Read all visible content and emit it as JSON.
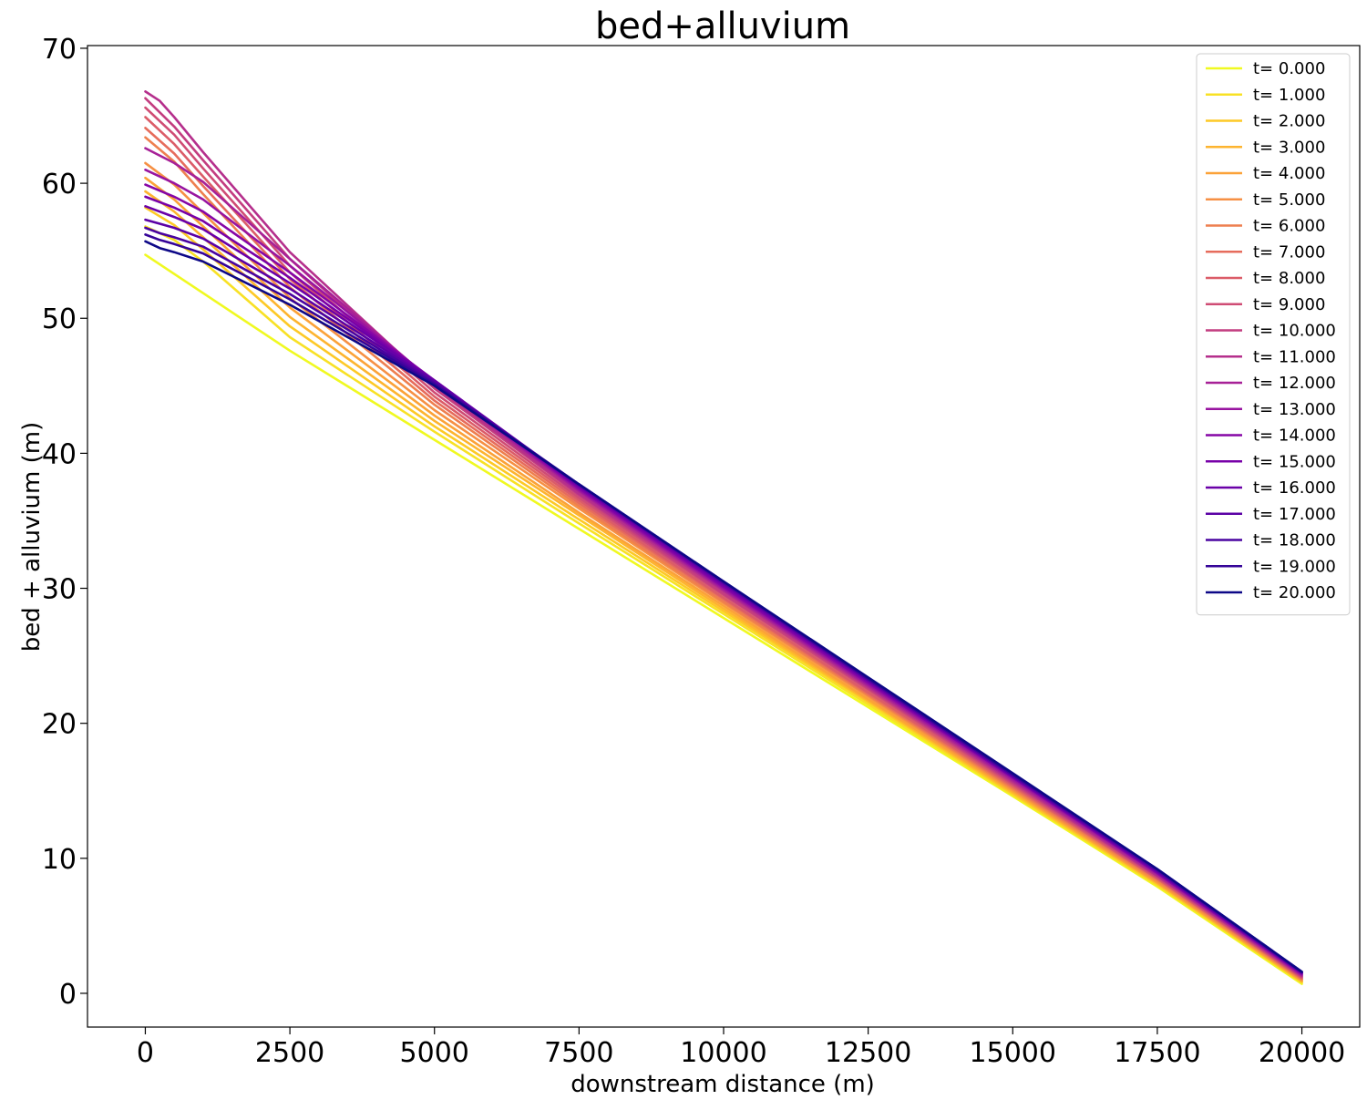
{
  "chart_data": {
    "type": "line",
    "title": "bed+alluvium",
    "xlabel": "downstream distance (m)",
    "ylabel": "bed + alluvium (m)",
    "xlim": [
      -1000,
      21000
    ],
    "ylim": [
      -2.5,
      70.2
    ],
    "xticks": [
      0,
      2500,
      5000,
      7500,
      10000,
      12500,
      15000,
      17500,
      20000
    ],
    "yticks": [
      0,
      10,
      20,
      30,
      40,
      50,
      60,
      70
    ],
    "legend_position": "top-right",
    "grid": false,
    "series": [
      {
        "name": "t= 0.000",
        "color": "#f0f921",
        "points": [
          [
            0,
            54.7
          ],
          [
            2500,
            47.6
          ],
          [
            5000,
            41.0
          ],
          [
            7500,
            34.4
          ],
          [
            10000,
            27.8
          ],
          [
            12500,
            21.2
          ],
          [
            15000,
            14.6
          ],
          [
            17500,
            7.9
          ],
          [
            20000,
            0.7
          ]
        ]
      },
      {
        "name": "t= 1.000",
        "color": "#f8e125",
        "points": [
          [
            0,
            56.8
          ],
          [
            500,
            55.8
          ],
          [
            1000,
            54.2
          ],
          [
            2500,
            48.6
          ],
          [
            5000,
            41.6
          ],
          [
            7500,
            34.8
          ],
          [
            10000,
            28.1
          ],
          [
            12500,
            21.4
          ],
          [
            15000,
            14.7
          ],
          [
            17500,
            8.0
          ],
          [
            20000,
            0.8
          ]
        ]
      },
      {
        "name": "t= 2.000",
        "color": "#fdc926",
        "points": [
          [
            0,
            58.2
          ],
          [
            500,
            56.9
          ],
          [
            1000,
            55.1
          ],
          [
            2500,
            49.4
          ],
          [
            5000,
            42.0
          ],
          [
            7500,
            35.1
          ],
          [
            10000,
            28.3
          ],
          [
            12500,
            21.6
          ],
          [
            15000,
            14.8
          ],
          [
            17500,
            8.1
          ],
          [
            20000,
            0.85
          ]
        ]
      },
      {
        "name": "t= 3.000",
        "color": "#fdb42f",
        "points": [
          [
            0,
            59.4
          ],
          [
            500,
            57.9
          ],
          [
            1000,
            56.0
          ],
          [
            2500,
            50.1
          ],
          [
            5000,
            42.4
          ],
          [
            7500,
            35.4
          ],
          [
            10000,
            28.5
          ],
          [
            12500,
            21.7
          ],
          [
            15000,
            14.9
          ],
          [
            17500,
            8.2
          ],
          [
            20000,
            0.9
          ]
        ]
      },
      {
        "name": "t= 4.000",
        "color": "#fba238",
        "points": [
          [
            0,
            60.4
          ],
          [
            500,
            58.8
          ],
          [
            1000,
            56.8
          ],
          [
            2500,
            50.8
          ],
          [
            5000,
            42.8
          ],
          [
            7500,
            35.6
          ],
          [
            10000,
            28.7
          ],
          [
            12500,
            21.8
          ],
          [
            15000,
            15.0
          ],
          [
            17500,
            8.2
          ],
          [
            20000,
            0.95
          ]
        ]
      },
      {
        "name": "t= 5.000",
        "color": "#f69044",
        "points": [
          [
            0,
            61.5
          ],
          [
            500,
            59.9
          ],
          [
            1000,
            57.8
          ],
          [
            2500,
            51.5
          ],
          [
            5000,
            43.2
          ],
          [
            7500,
            35.9
          ],
          [
            10000,
            28.9
          ],
          [
            12500,
            22.0
          ],
          [
            15000,
            15.1
          ],
          [
            17500,
            8.3
          ],
          [
            20000,
            1.0
          ]
        ]
      },
      {
        "name": "t= 6.000",
        "color": "#ee7f4f",
        "points": [
          [
            0,
            63.4
          ],
          [
            500,
            61.6
          ],
          [
            1000,
            59.2
          ],
          [
            2500,
            52.3
          ],
          [
            5000,
            43.6
          ],
          [
            7500,
            36.1
          ],
          [
            10000,
            29.0
          ],
          [
            12500,
            22.1
          ],
          [
            15000,
            15.2
          ],
          [
            17500,
            8.4
          ],
          [
            20000,
            1.05
          ]
        ]
      },
      {
        "name": "t= 7.000",
        "color": "#e66c5c",
        "points": [
          [
            0,
            64.1
          ],
          [
            500,
            62.2
          ],
          [
            1000,
            59.8
          ],
          [
            2500,
            52.9
          ],
          [
            5000,
            43.9
          ],
          [
            7500,
            36.3
          ],
          [
            10000,
            29.2
          ],
          [
            12500,
            22.2
          ],
          [
            15000,
            15.3
          ],
          [
            17500,
            8.5
          ],
          [
            20000,
            1.1
          ]
        ]
      },
      {
        "name": "t= 8.000",
        "color": "#db5c68",
        "points": [
          [
            0,
            64.9
          ],
          [
            500,
            62.9
          ],
          [
            1000,
            60.5
          ],
          [
            2500,
            53.4
          ],
          [
            5000,
            44.2
          ],
          [
            7500,
            36.5
          ],
          [
            10000,
            29.3
          ],
          [
            12500,
            22.3
          ],
          [
            15000,
            15.4
          ],
          [
            17500,
            8.5
          ],
          [
            20000,
            1.15
          ]
        ]
      },
      {
        "name": "t= 9.000",
        "color": "#cf4c74",
        "points": [
          [
            0,
            65.6
          ],
          [
            500,
            63.6
          ],
          [
            1000,
            61.1
          ],
          [
            2500,
            53.9
          ],
          [
            5000,
            44.5
          ],
          [
            7500,
            36.7
          ],
          [
            10000,
            29.5
          ],
          [
            12500,
            22.5
          ],
          [
            15000,
            15.5
          ],
          [
            17500,
            8.6
          ],
          [
            20000,
            1.2
          ]
        ]
      },
      {
        "name": "t= 10.000",
        "color": "#c33d80",
        "points": [
          [
            0,
            66.3
          ],
          [
            500,
            64.2
          ],
          [
            1000,
            61.7
          ],
          [
            2500,
            54.4
          ],
          [
            5000,
            44.8
          ],
          [
            7500,
            36.9
          ],
          [
            10000,
            29.6
          ],
          [
            12500,
            22.6
          ],
          [
            15000,
            15.6
          ],
          [
            17500,
            8.7
          ],
          [
            20000,
            1.25
          ]
        ]
      },
      {
        "name": "t= 11.000",
        "color": "#b52f8c",
        "points": [
          [
            0,
            66.8
          ],
          [
            250,
            66.1
          ],
          [
            500,
            64.9
          ],
          [
            1000,
            62.3
          ],
          [
            2500,
            54.9
          ],
          [
            5000,
            45.0
          ],
          [
            7500,
            37.0
          ],
          [
            10000,
            29.8
          ],
          [
            12500,
            22.7
          ],
          [
            15000,
            15.7
          ],
          [
            17500,
            8.7
          ],
          [
            20000,
            1.3
          ]
        ]
      },
      {
        "name": "t= 12.000",
        "color": "#a72197",
        "points": [
          [
            0,
            62.6
          ],
          [
            500,
            61.5
          ],
          [
            1000,
            60.1
          ],
          [
            2500,
            54.4
          ],
          [
            5000,
            45.2
          ],
          [
            7500,
            37.2
          ],
          [
            10000,
            29.9
          ],
          [
            12500,
            22.8
          ],
          [
            15000,
            15.8
          ],
          [
            17500,
            8.8
          ],
          [
            20000,
            1.35
          ]
        ]
      },
      {
        "name": "t= 13.000",
        "color": "#9814a0",
        "points": [
          [
            0,
            61.0
          ],
          [
            500,
            60.0
          ],
          [
            1000,
            58.8
          ],
          [
            2500,
            53.9
          ],
          [
            5000,
            45.3
          ],
          [
            7500,
            37.3
          ],
          [
            10000,
            30.0
          ],
          [
            12500,
            22.9
          ],
          [
            15000,
            15.9
          ],
          [
            17500,
            8.9
          ],
          [
            20000,
            1.4
          ]
        ]
      },
      {
        "name": "t= 14.000",
        "color": "#8606a6",
        "points": [
          [
            0,
            59.9
          ],
          [
            500,
            59.0
          ],
          [
            1000,
            57.9
          ],
          [
            2500,
            53.4
          ],
          [
            5000,
            45.4
          ],
          [
            7500,
            37.4
          ],
          [
            10000,
            30.1
          ],
          [
            12500,
            23.0
          ],
          [
            15000,
            16.0
          ],
          [
            17500,
            8.9
          ],
          [
            20000,
            1.45
          ]
        ]
      },
      {
        "name": "t= 15.000",
        "color": "#7801a8",
        "points": [
          [
            0,
            59.0
          ],
          [
            500,
            58.2
          ],
          [
            1000,
            57.2
          ],
          [
            2500,
            53.0
          ],
          [
            5000,
            45.4
          ],
          [
            7500,
            37.5
          ],
          [
            10000,
            30.2
          ],
          [
            12500,
            23.1
          ],
          [
            15000,
            16.0
          ],
          [
            17500,
            9.0
          ],
          [
            20000,
            1.5
          ]
        ]
      },
      {
        "name": "t= 16.000",
        "color": "#6a00a8",
        "points": [
          [
            0,
            58.3
          ],
          [
            500,
            57.5
          ],
          [
            1000,
            56.6
          ],
          [
            2500,
            52.6
          ],
          [
            5000,
            45.4
          ],
          [
            7500,
            37.6
          ],
          [
            10000,
            30.3
          ],
          [
            12500,
            23.2
          ],
          [
            15000,
            16.1
          ],
          [
            17500,
            9.0
          ],
          [
            20000,
            1.5
          ]
        ]
      },
      {
        "name": "t= 17.000",
        "color": "#5b01a5",
        "points": [
          [
            0,
            57.3
          ],
          [
            250,
            57.0
          ],
          [
            500,
            56.7
          ],
          [
            1000,
            55.9
          ],
          [
            2500,
            52.2
          ],
          [
            5000,
            45.3
          ],
          [
            7500,
            37.6
          ],
          [
            10000,
            30.4
          ],
          [
            12500,
            23.2
          ],
          [
            15000,
            16.1
          ],
          [
            17500,
            9.1
          ],
          [
            20000,
            1.55
          ]
        ]
      },
      {
        "name": "t= 18.000",
        "color": "#4903a0",
        "points": [
          [
            0,
            56.7
          ],
          [
            250,
            56.3
          ],
          [
            500,
            56.0
          ],
          [
            1000,
            55.3
          ],
          [
            2500,
            51.8
          ],
          [
            5000,
            45.2
          ],
          [
            7500,
            37.7
          ],
          [
            10000,
            30.4
          ],
          [
            12500,
            23.3
          ],
          [
            15000,
            16.2
          ],
          [
            17500,
            9.1
          ],
          [
            20000,
            1.55
          ]
        ]
      },
      {
        "name": "t= 19.000",
        "color": "#350498",
        "points": [
          [
            0,
            56.2
          ],
          [
            250,
            55.8
          ],
          [
            500,
            55.5
          ],
          [
            1000,
            54.8
          ],
          [
            2500,
            51.4
          ],
          [
            5000,
            45.1
          ],
          [
            7500,
            37.7
          ],
          [
            10000,
            30.5
          ],
          [
            12500,
            23.3
          ],
          [
            15000,
            16.2
          ],
          [
            17500,
            9.2
          ],
          [
            20000,
            1.6
          ]
        ]
      },
      {
        "name": "t= 20.000",
        "color": "#0d0887",
        "points": [
          [
            0,
            55.7
          ],
          [
            250,
            55.2
          ],
          [
            500,
            54.9
          ],
          [
            1000,
            54.2
          ],
          [
            2500,
            51.0
          ],
          [
            5000,
            45.0
          ],
          [
            7500,
            37.7
          ],
          [
            10000,
            30.5
          ],
          [
            12500,
            23.4
          ],
          [
            15000,
            16.3
          ],
          [
            17500,
            9.2
          ],
          [
            20000,
            1.6
          ]
        ]
      }
    ]
  }
}
